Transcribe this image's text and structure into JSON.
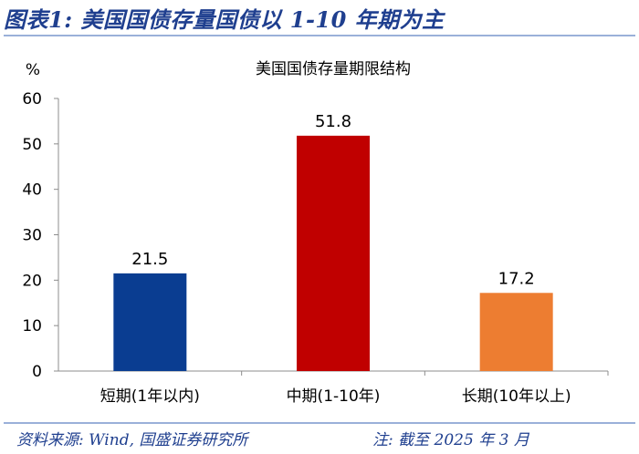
{
  "figure": {
    "title": "图表1: 美国国债存量国债以 1-10 年期为主",
    "source": "资料来源: Wind, 国盛证券研究所",
    "note": "注: 截至 2025 年 3 月"
  },
  "chart_data": {
    "type": "bar",
    "title": "美国国债存量期限结构",
    "ylabel": "%",
    "xlabel": "",
    "categories": [
      "短期(1年以内)",
      "中期(1-10年)",
      "长期(10年以上)"
    ],
    "values": [
      21.5,
      51.8,
      17.2
    ],
    "data_labels": [
      "21.5",
      "51.8",
      "17.2"
    ],
    "bar_colors": [
      "#0a3d91",
      "#c00000",
      "#ed7d31"
    ],
    "ylim": [
      0,
      60
    ],
    "yticks": [
      0,
      10,
      20,
      30,
      40,
      50,
      60
    ],
    "grid": false,
    "legend": "none"
  }
}
